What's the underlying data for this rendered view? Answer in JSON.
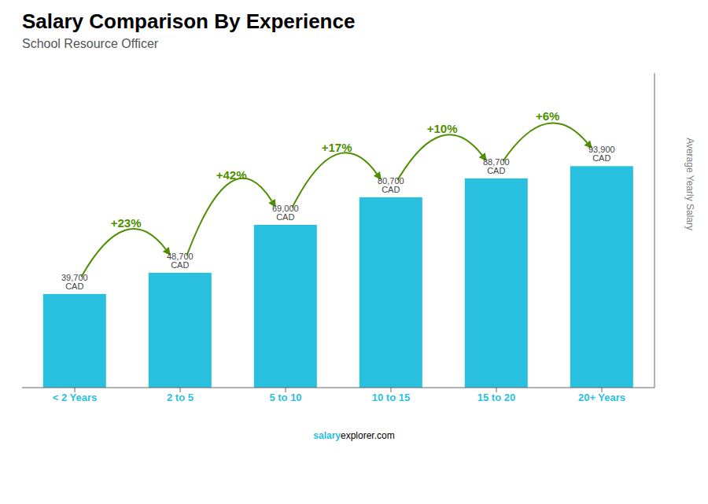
{
  "chart_data": {
    "type": "bar",
    "title": "Salary Comparison By Experience",
    "subtitle": "School Resource Officer",
    "ylabel": "Average Yearly Salary",
    "categories": [
      "< 2 Years",
      "2 to 5",
      "5 to 10",
      "10 to 15",
      "15 to 20",
      "20+ Years"
    ],
    "values": [
      39700,
      48700,
      69000,
      80700,
      88700,
      93900
    ],
    "value_labels": [
      "39,700 CAD",
      "48,700 CAD",
      "69,000 CAD",
      "80,700 CAD",
      "88,700 CAD",
      "93,900 CAD"
    ],
    "data_labels": true,
    "annotations": [
      null,
      "+23%",
      "+42%",
      "+17%",
      "+10%",
      "+6%"
    ],
    "footer": [
      "salary",
      "explorer.com"
    ],
    "color": "#29BFDF",
    "ylim": [
      0,
      133338
    ],
    "tick_labels": "x",
    "grid": false
  }
}
